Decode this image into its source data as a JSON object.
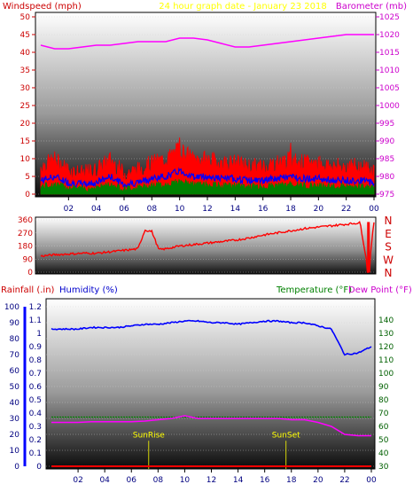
{
  "header": {
    "left_label": "Windspeed (mph)",
    "center_label": "24 hour graph date - January 23 2018",
    "right_label": "Barometer (mb)"
  },
  "colors": {
    "windspeed": "#ff0000",
    "barometer": "#ff00ff",
    "wind_avg": "#0000ff",
    "wind_low": "#008000",
    "direction": "#ff0000",
    "humidity": "#0000ff",
    "temperature": "#008000",
    "dewpoint": "#ff00ff",
    "rainfall": "#ff0000",
    "sun_label": "#ffff00"
  },
  "chart_data": [
    {
      "type": "line",
      "title": "24 hour graph date - January 23 2018",
      "ylabel": "Windspeed (mph)",
      "y2label": "Barometer (mb)",
      "ylim": [
        0,
        50
      ],
      "y2lim": [
        975,
        1025
      ],
      "yticks": [
        0,
        5,
        10,
        15,
        20,
        25,
        30,
        35,
        40,
        45,
        50
      ],
      "y2ticks": [
        975,
        980,
        985,
        990,
        995,
        1000,
        1005,
        1010,
        1015,
        1020,
        1025
      ],
      "xticks": [
        "02",
        "04",
        "06",
        "08",
        "10",
        "12",
        "14",
        "16",
        "18",
        "20",
        "22",
        "00"
      ],
      "x": [
        0,
        1,
        2,
        3,
        4,
        5,
        6,
        7,
        8,
        9,
        10,
        11,
        12,
        13,
        14,
        15,
        16,
        17,
        18,
        19,
        20,
        21,
        22,
        23,
        24
      ],
      "series": [
        {
          "name": "Windspeed",
          "axis": "left",
          "values": [
            7,
            9,
            6,
            5,
            6,
            9,
            5,
            6,
            8,
            9,
            12,
            9,
            9,
            8,
            8,
            7,
            7,
            8,
            9,
            8,
            8,
            7,
            7,
            7,
            6
          ]
        },
        {
          "name": "Barometer",
          "axis": "right",
          "values": [
            1017,
            1016,
            1016,
            1016.5,
            1017,
            1017,
            1017.5,
            1018,
            1018,
            1018,
            1019,
            1019,
            1018.5,
            1017.5,
            1016.5,
            1016.5,
            1017,
            1017.5,
            1018,
            1018.5,
            1019,
            1019.5,
            1020,
            1020,
            1020
          ]
        }
      ]
    },
    {
      "type": "line",
      "ylim": [
        0,
        360
      ],
      "yticks": [
        0,
        90,
        180,
        270,
        360
      ],
      "y2ticks": [
        "N",
        "W",
        "S",
        "E",
        "N"
      ],
      "xticks": [
        "02",
        "04",
        "06",
        "08",
        "10",
        "12",
        "14",
        "16",
        "18",
        "20",
        "22",
        "00"
      ],
      "x": [
        0,
        1,
        2,
        3,
        4,
        5,
        6,
        7,
        7.5,
        8,
        8.5,
        9,
        10,
        11,
        12,
        13,
        14,
        15,
        16,
        17,
        18,
        19,
        20,
        21,
        22,
        23,
        23.6,
        24
      ],
      "series": [
        {
          "name": "Wind direction",
          "values": [
            110,
            120,
            125,
            130,
            130,
            140,
            150,
            160,
            290,
            280,
            155,
            160,
            180,
            190,
            200,
            210,
            220,
            235,
            255,
            270,
            285,
            300,
            310,
            320,
            330,
            340,
            0,
            345
          ]
        }
      ]
    },
    {
      "type": "line",
      "ylabels": [
        "Rainfall (.in)",
        "Humidity (%)"
      ],
      "y2labels": [
        "Temperature (°F)",
        "Dew Point (°F)"
      ],
      "humidity_ticks": [
        0,
        10,
        20,
        30,
        40,
        50,
        60,
        70,
        80,
        90,
        100
      ],
      "rainfall_ticks": [
        "0",
        "0.1",
        "0.2",
        "0.3",
        "0.4",
        "0.5",
        "0.6",
        "0.7",
        "0.8",
        "0.9",
        "1",
        "1.1",
        "1.2"
      ],
      "temperature_ticks": [
        30,
        40,
        50,
        60,
        70,
        80,
        90,
        100,
        110,
        120,
        130,
        140
      ],
      "ylim": [
        0,
        100
      ],
      "y2lim": [
        30,
        150
      ],
      "xticks": [
        "02",
        "04",
        "06",
        "08",
        "10",
        "12",
        "14",
        "16",
        "18",
        "20",
        "22",
        "00"
      ],
      "x": [
        0,
        1,
        2,
        3,
        4,
        5,
        6,
        7,
        8,
        9,
        10,
        11,
        12,
        13,
        14,
        15,
        16,
        17,
        18,
        19,
        20,
        21,
        22,
        23,
        24
      ],
      "series": [
        {
          "name": "Humidity",
          "axis": "humidity",
          "values": [
            86,
            86,
            86,
            87,
            87,
            87,
            88,
            89,
            89,
            90,
            91,
            91,
            90,
            90,
            89,
            90,
            91,
            91,
            90,
            90,
            88,
            86,
            70,
            71,
            75
          ]
        },
        {
          "name": "Temperature",
          "axis": "temperature",
          "values": [
            67,
            67,
            67,
            67,
            67,
            67,
            67,
            67,
            67,
            67,
            67,
            67,
            67,
            67,
            67,
            67,
            67,
            67,
            67,
            67,
            67,
            67,
            67,
            67,
            67
          ]
        },
        {
          "name": "Dew Point",
          "axis": "temperature",
          "values": [
            63,
            63,
            63,
            63.5,
            63.5,
            63.5,
            63.5,
            64,
            65,
            66,
            68,
            66,
            66,
            66,
            66,
            66,
            66,
            66,
            65,
            65,
            63,
            60,
            54,
            53,
            53
          ]
        },
        {
          "name": "Rainfall",
          "axis": "rainfall",
          "values": [
            0,
            0,
            0,
            0,
            0,
            0,
            0,
            0,
            0,
            0,
            0,
            0,
            0,
            0,
            0,
            0,
            0,
            0,
            0,
            0,
            0,
            0,
            0,
            0,
            0
          ]
        }
      ],
      "annotations": [
        {
          "label": "SunRise",
          "x": 7.3
        },
        {
          "label": "SunSet",
          "x": 17.6
        }
      ]
    }
  ],
  "footer": {}
}
